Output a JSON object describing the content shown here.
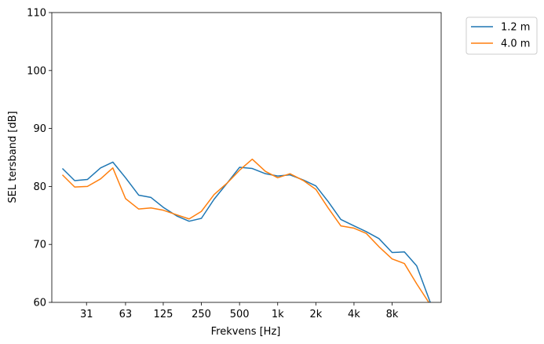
{
  "chart_data": {
    "type": "line",
    "xlabel": "Frekvens [Hz]",
    "ylabel": "SEL tersband [dB]",
    "ylim": [
      60,
      110
    ],
    "yticks": [
      60,
      70,
      80,
      90,
      100,
      110
    ],
    "xscale": "log2",
    "xticks": [
      31,
      63,
      125,
      250,
      500,
      1000,
      2000,
      4000,
      8000
    ],
    "xtick_labels": [
      "31",
      "63",
      "125",
      "250",
      "500",
      "1k",
      "2k",
      "4k",
      "8k"
    ],
    "grid": false,
    "legend_position": "outside-top-right",
    "x": [
      20,
      25,
      31.5,
      40,
      50,
      63,
      80,
      100,
      125,
      160,
      200,
      250,
      315,
      400,
      500,
      630,
      800,
      1000,
      1250,
      1600,
      2000,
      2500,
      3150,
      4000,
      5000,
      6300,
      8000,
      10000,
      12500,
      16000
    ],
    "series": [
      {
        "name": "1.2 m",
        "color": "#1f77b4",
        "values": [
          83.1,
          81.0,
          81.2,
          83.2,
          84.2,
          81.5,
          78.5,
          78.1,
          76.4,
          74.9,
          74.0,
          74.5,
          77.8,
          80.6,
          83.3,
          83.1,
          82.2,
          81.8,
          82.0,
          81.1,
          80.1,
          77.4,
          74.3,
          73.2,
          72.2,
          71.0,
          68.6,
          68.7,
          66.3,
          60.0
        ]
      },
      {
        "name": "4.0 m",
        "color": "#ff7f0e",
        "values": [
          82.0,
          79.9,
          80.0,
          81.3,
          83.2,
          77.9,
          76.1,
          76.3,
          75.9,
          75.1,
          74.4,
          75.7,
          78.6,
          80.6,
          82.8,
          84.7,
          82.6,
          81.5,
          82.2,
          81.0,
          79.5,
          76.3,
          73.2,
          72.8,
          71.9,
          69.6,
          67.5,
          66.7,
          63.2,
          59.6
        ]
      }
    ]
  }
}
